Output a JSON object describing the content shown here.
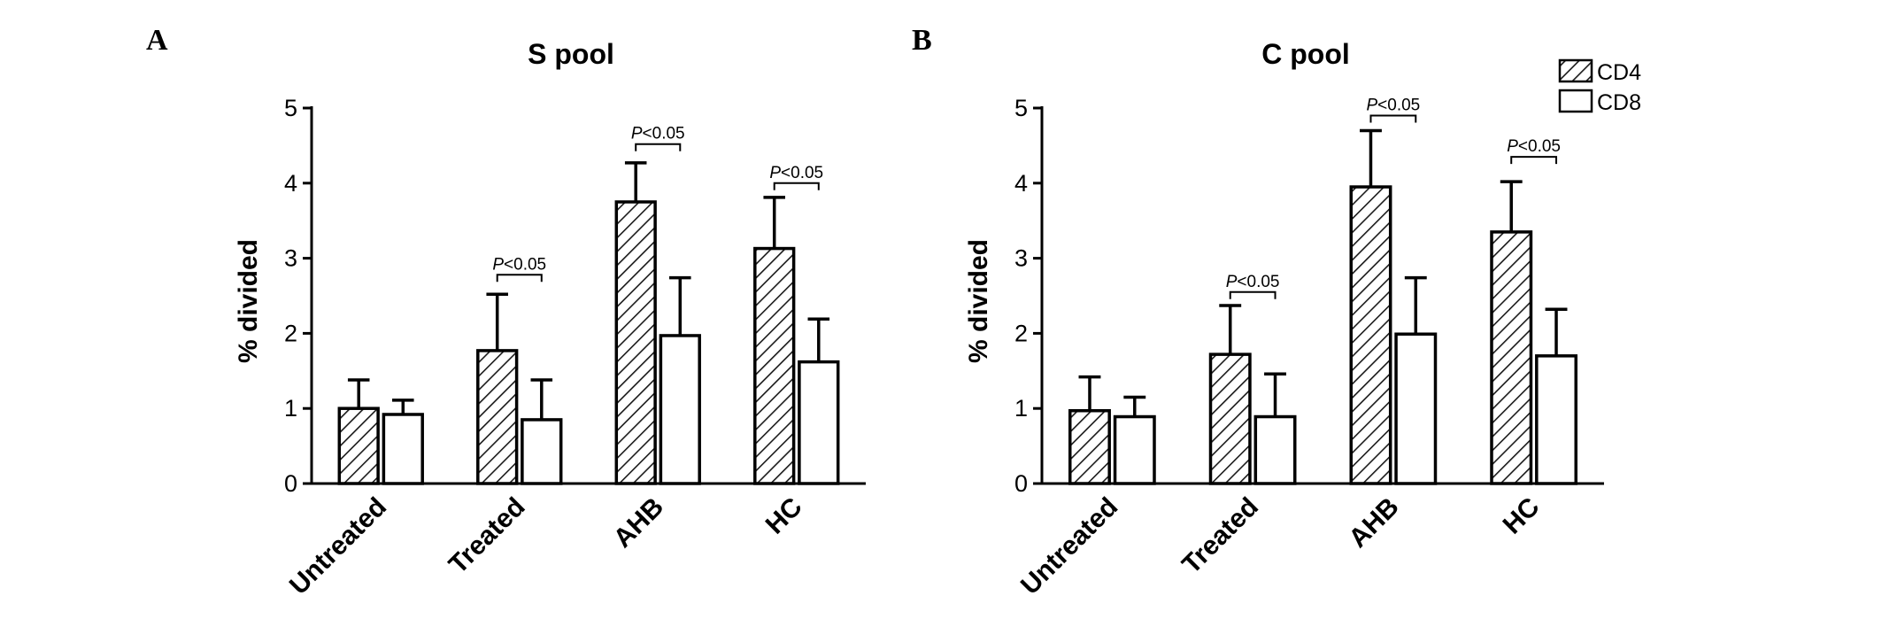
{
  "legend": [
    {
      "label": "CD4",
      "pattern": "hatched"
    },
    {
      "label": "CD8",
      "pattern": "open"
    }
  ],
  "chart_data": [
    {
      "type": "bar",
      "panel": "A",
      "title": "S pool",
      "ylabel": "% divided",
      "ylim": [
        0,
        5
      ],
      "yticks": [
        "0",
        "1",
        "2",
        "3",
        "4",
        "5"
      ],
      "categories": [
        "Untreated",
        "Treated",
        "AHB",
        "HC"
      ],
      "series": [
        {
          "name": "CD4",
          "values": [
            1.0,
            1.77,
            3.75,
            3.13
          ],
          "errors": [
            0.38,
            0.75,
            0.52,
            0.68
          ]
        },
        {
          "name": "CD8",
          "values": [
            0.92,
            0.85,
            1.97,
            1.62
          ],
          "errors": [
            0.19,
            0.53,
            0.77,
            0.57
          ]
        }
      ],
      "annotations": [
        {
          "category": 1,
          "text": "P<0.05",
          "level": 2.78
        },
        {
          "category": 2,
          "text": "P<0.05",
          "level": 4.52
        },
        {
          "category": 3,
          "text": "P<0.05",
          "level": 4.0
        }
      ]
    },
    {
      "type": "bar",
      "panel": "B",
      "title": "C pool",
      "ylabel": "% divided",
      "ylim": [
        0,
        5
      ],
      "yticks": [
        "0",
        "1",
        "2",
        "3",
        "4",
        "5"
      ],
      "categories": [
        "Untreated",
        "Treated",
        "AHB",
        "HC"
      ],
      "series": [
        {
          "name": "CD4",
          "values": [
            0.97,
            1.72,
            3.95,
            3.35
          ],
          "errors": [
            0.45,
            0.65,
            0.75,
            0.67
          ]
        },
        {
          "name": "CD8",
          "values": [
            0.89,
            0.89,
            1.99,
            1.7
          ],
          "errors": [
            0.26,
            0.57,
            0.75,
            0.62
          ]
        }
      ],
      "annotations": [
        {
          "category": 1,
          "text": "P<0.05",
          "level": 2.55
        },
        {
          "category": 2,
          "text": "P<0.05",
          "level": 4.9
        },
        {
          "category": 3,
          "text": "P<0.05",
          "level": 4.35
        }
      ]
    }
  ]
}
